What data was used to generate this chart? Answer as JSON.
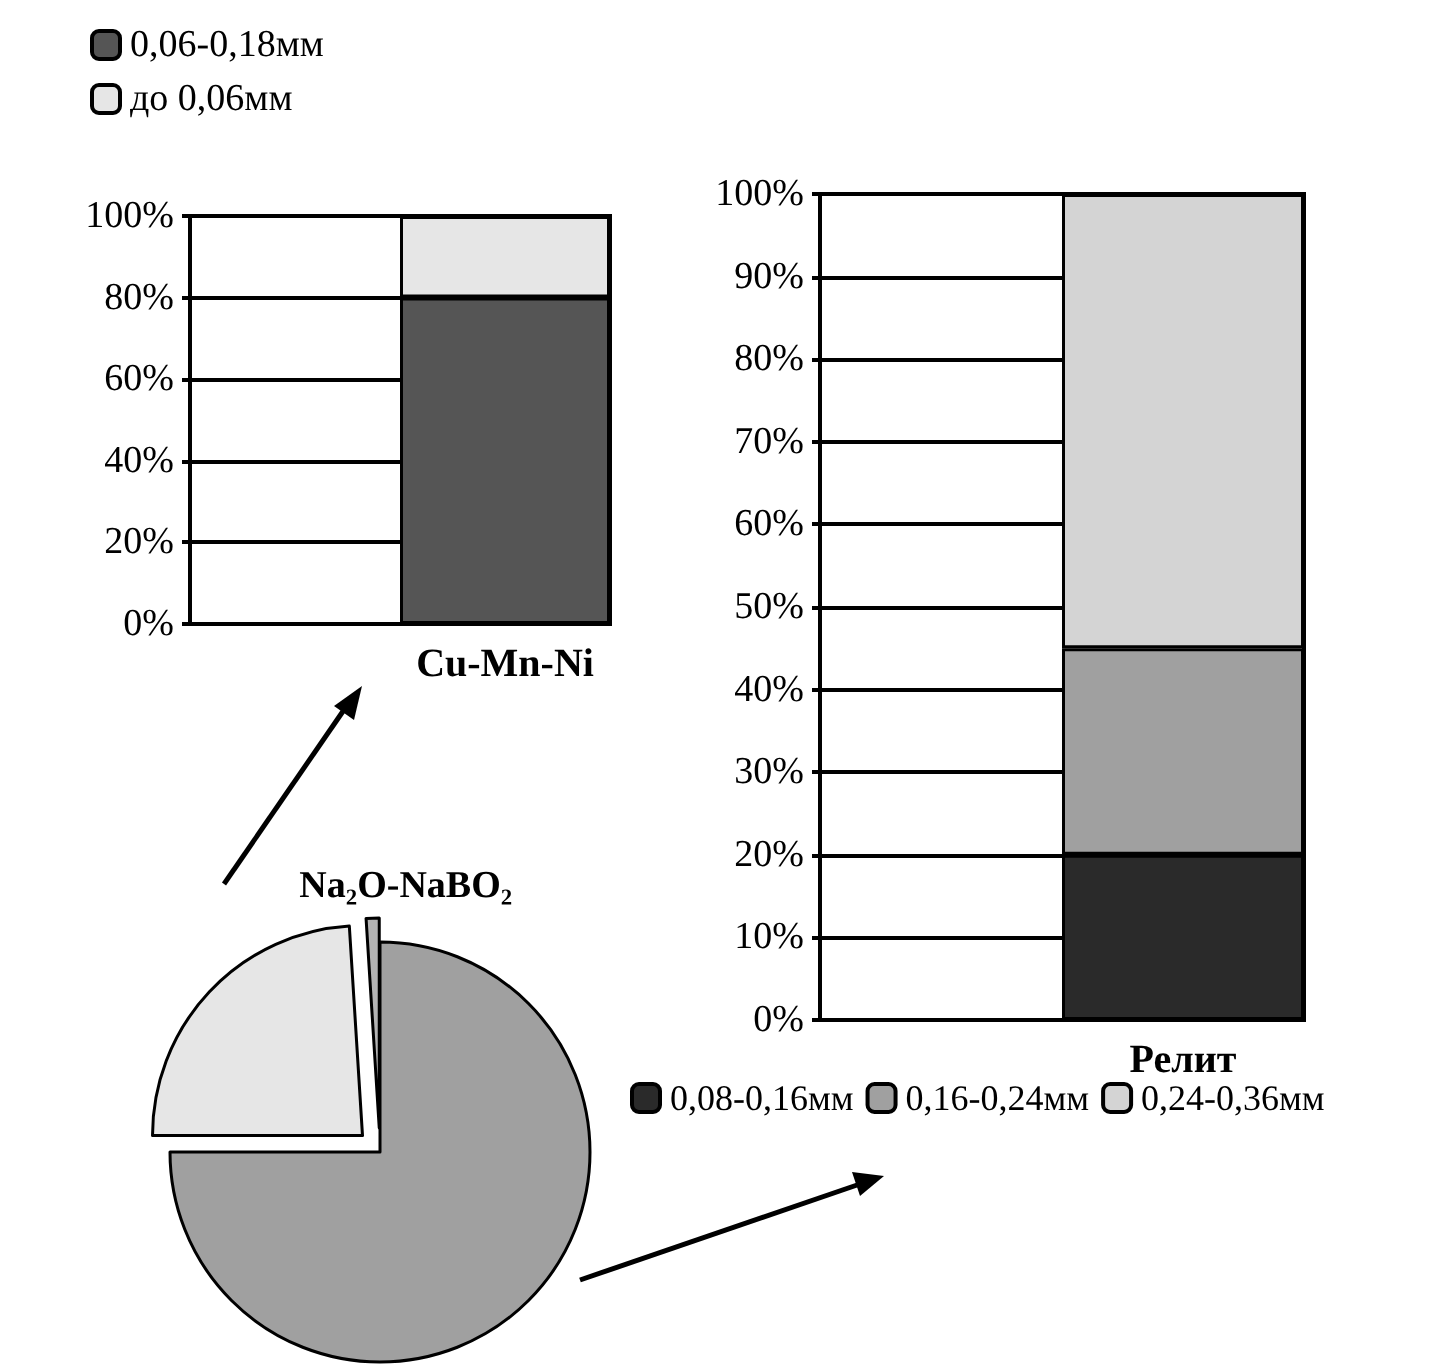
{
  "chart_data": [
    {
      "type": "pie",
      "categories": [
        null,
        null,
        "Na₂O-NaBO₂"
      ],
      "values": [
        75,
        24,
        1
      ],
      "colors": [
        "#a0a0a0",
        "#e6e6e6",
        "#b4b4b4"
      ],
      "legend": false
    },
    {
      "type": "bar",
      "stacked": true,
      "categories": [
        null,
        "Cu-Mn-Ni"
      ],
      "ylim": [
        0,
        100
      ],
      "yticks": [
        {
          "value": 0,
          "label": "0%"
        },
        {
          "value": 20,
          "label": "20%"
        },
        {
          "value": 40,
          "label": "40%"
        },
        {
          "value": 60,
          "label": "60%"
        },
        {
          "value": 80,
          "label": "80%"
        },
        {
          "value": 100,
          "label": "100%"
        }
      ],
      "series": [
        {
          "name": "0,06-0,18мм",
          "color": "#555555",
          "values": [
            null,
            80
          ]
        },
        {
          "name": "до 0,06мм",
          "color": "#e6e6e6",
          "values": [
            null,
            20
          ]
        }
      ],
      "grid": "y",
      "legend": "top left"
    },
    {
      "type": "bar",
      "stacked": true,
      "categories": [
        null,
        "Релит"
      ],
      "ylim": [
        0,
        100
      ],
      "yticks": [
        {
          "value": 0,
          "label": "0%"
        },
        {
          "value": 10,
          "label": "10%"
        },
        {
          "value": 20,
          "label": "20%"
        },
        {
          "value": 30,
          "label": "30%"
        },
        {
          "value": 40,
          "label": "40%"
        },
        {
          "value": 50,
          "label": "50%"
        },
        {
          "value": 60,
          "label": "60%"
        },
        {
          "value": 70,
          "label": "70%"
        },
        {
          "value": 80,
          "label": "80%"
        },
        {
          "value": 90,
          "label": "90%"
        },
        {
          "value": 100,
          "label": "100%"
        }
      ],
      "series": [
        {
          "name": "0,08-0,16мм",
          "color": "#2a2a2a",
          "values": [
            null,
            20
          ]
        },
        {
          "name": "0,16-0,24мм",
          "color": "#a0a0a0",
          "values": [
            null,
            25
          ]
        },
        {
          "name": "0,24-0,36мм",
          "color": "#d4d4d4",
          "values": [
            null,
            55
          ]
        }
      ],
      "grid": "y",
      "legend": "bottom"
    }
  ]
}
